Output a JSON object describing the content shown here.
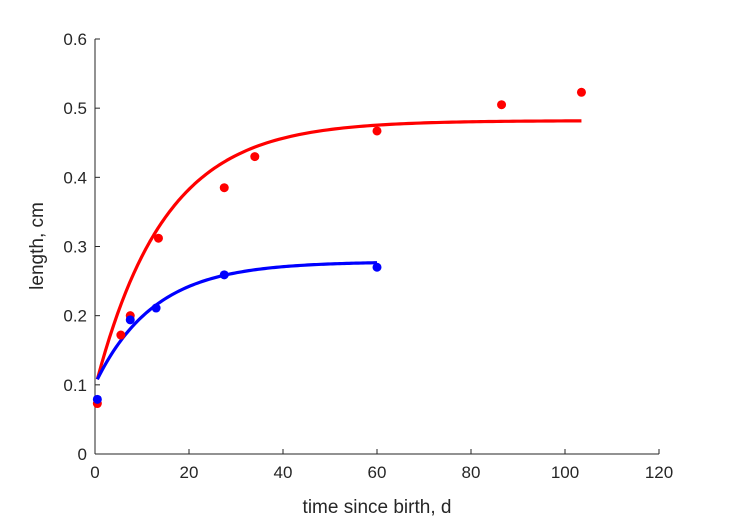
{
  "chart_data": {
    "type": "scatter",
    "title": "",
    "xlabel": "time since birth, d",
    "ylabel": "length, cm",
    "xlim": [
      0,
      120
    ],
    "ylim": [
      0,
      0.6
    ],
    "xticks": [
      "0",
      "20",
      "40",
      "60",
      "80",
      "100",
      "120"
    ],
    "yticks": [
      "0",
      "0.1",
      "0.2",
      "0.3",
      "0.4",
      "0.5",
      "0.6"
    ],
    "grid": false,
    "legend": "none",
    "series": [
      {
        "color": "#ff0000",
        "points": [
          {
            "x": 0.5,
            "y": 0.073
          },
          {
            "x": 5.5,
            "y": 0.172
          },
          {
            "x": 7.5,
            "y": 0.2
          },
          {
            "x": 13.5,
            "y": 0.312
          },
          {
            "x": 27.5,
            "y": 0.385
          },
          {
            "x": 34,
            "y": 0.43
          },
          {
            "x": 60,
            "y": 0.467
          },
          {
            "x": 86.5,
            "y": 0.505
          },
          {
            "x": 103.5,
            "y": 0.523
          }
        ],
        "fit": {
          "x_start": 0.5,
          "x_end": 103.5,
          "y0": 0.108,
          "y_inf": 0.482,
          "rate": 0.068
        }
      },
      {
        "color": "#0000ff",
        "points": [
          {
            "x": 0.5,
            "y": 0.079
          },
          {
            "x": 7.5,
            "y": 0.194
          },
          {
            "x": 13,
            "y": 0.211
          },
          {
            "x": 27.5,
            "y": 0.259
          },
          {
            "x": 60,
            "y": 0.27
          }
        ],
        "fit": {
          "x_start": 0.5,
          "x_end": 60,
          "y0": 0.108,
          "y_inf": 0.278,
          "rate": 0.08
        }
      }
    ]
  }
}
